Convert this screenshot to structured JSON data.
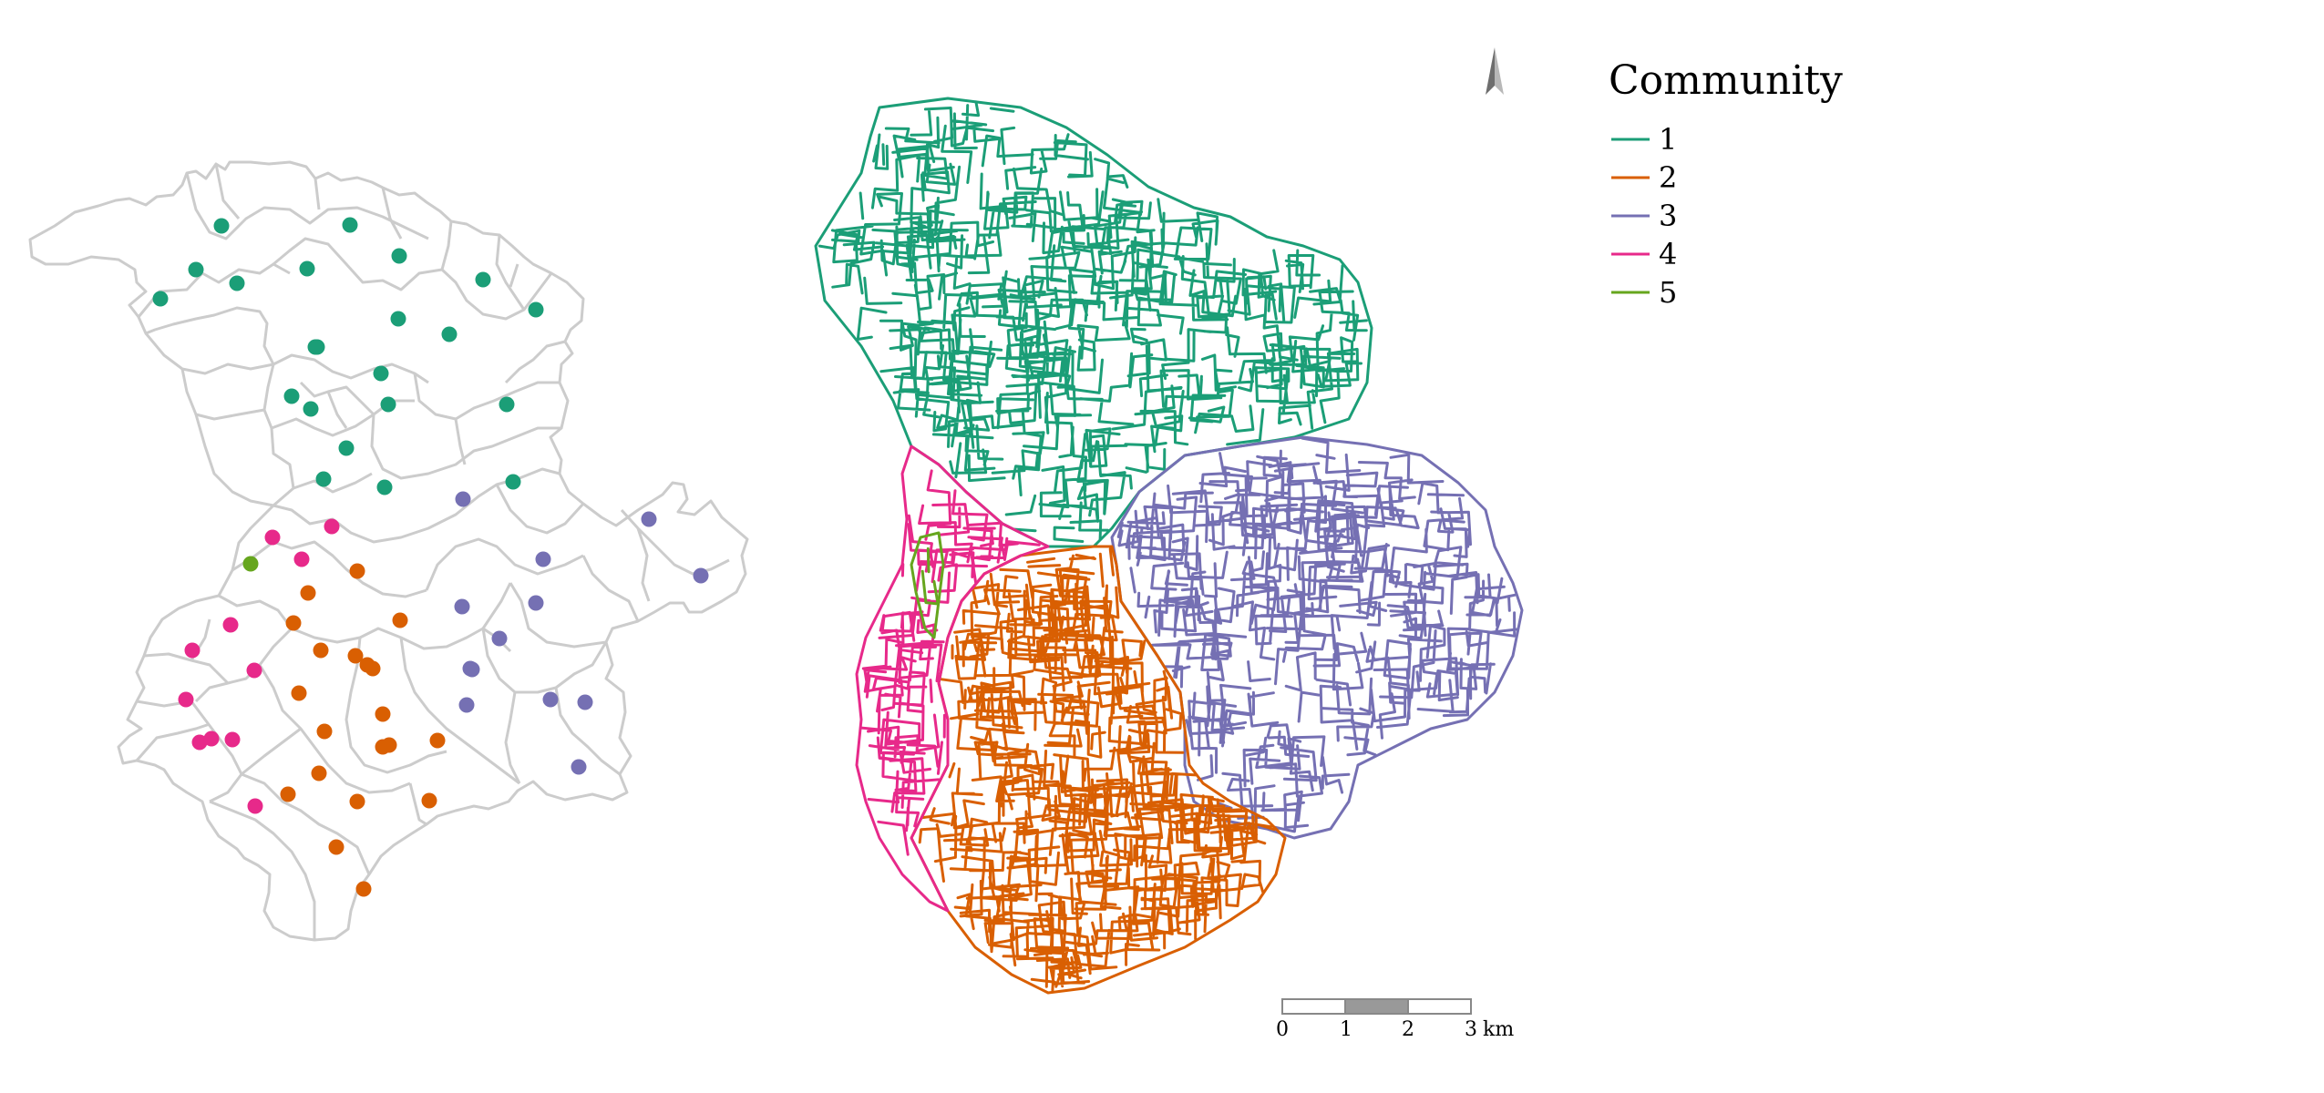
{
  "legend": {
    "title": "Community",
    "items": [
      {
        "label": "1",
        "color": "#1b9e77"
      },
      {
        "label": "2",
        "color": "#d95f02"
      },
      {
        "label": "3",
        "color": "#7570b3"
      },
      {
        "label": "4",
        "color": "#e7298a"
      },
      {
        "label": "5",
        "color": "#66a61e"
      }
    ]
  },
  "scale_bar": {
    "ticks": [
      "0",
      "1",
      "2",
      "3"
    ],
    "unit": "km"
  },
  "north_arrow": {
    "icon": "north-arrow-icon"
  },
  "point_map": {
    "boundary_color": "#cccccc",
    "points_per_community": {
      "1": 22,
      "2": 20,
      "3": 13,
      "4": 11,
      "5": 1
    }
  },
  "network_map": {
    "communities": [
      "1",
      "2",
      "3",
      "4",
      "5"
    ]
  }
}
